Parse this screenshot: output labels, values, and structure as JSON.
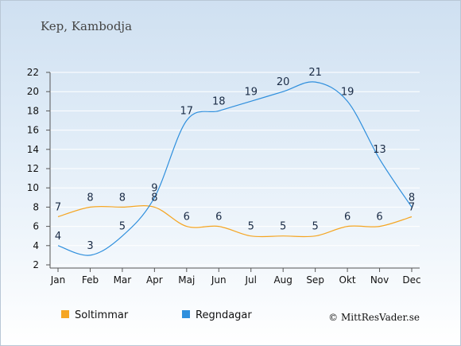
{
  "chart_data": {
    "type": "line",
    "title": "Kep, Kambodja",
    "categories": [
      "Jan",
      "Feb",
      "Mar",
      "Apr",
      "Maj",
      "Jun",
      "Jul",
      "Aug",
      "Sep",
      "Okt",
      "Nov",
      "Dec"
    ],
    "series": [
      {
        "name": "Soltimmar",
        "color": "#f5a623",
        "values": [
          7,
          8,
          8,
          8,
          6,
          6,
          5,
          5,
          5,
          6,
          6,
          7
        ]
      },
      {
        "name": "Regndagar",
        "color": "#2f8fdd",
        "values": [
          4,
          3,
          5,
          9,
          17,
          18,
          19,
          20,
          21,
          19,
          13,
          8
        ]
      }
    ],
    "yticks": [
      2,
      4,
      6,
      8,
      10,
      12,
      14,
      16,
      18,
      20,
      22
    ],
    "ylim": [
      2,
      22
    ],
    "legend": "bottom-left",
    "credit": "© MittResVader.se"
  }
}
